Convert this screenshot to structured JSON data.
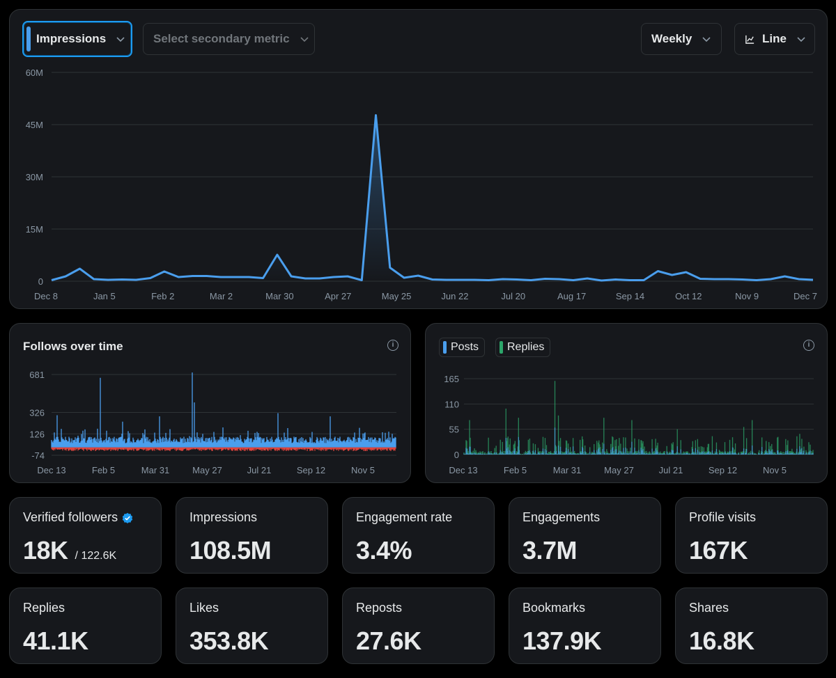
{
  "controls": {
    "primary_metric": "Impressions",
    "secondary_metric_placeholder": "Select secondary metric",
    "interval": "Weekly",
    "chart_type": "Line"
  },
  "chart_data": [
    {
      "type": "line",
      "name": "impressions",
      "title": "",
      "ylim": [
        0,
        60000000
      ],
      "y_ticks": [
        "0",
        "15M",
        "30M",
        "45M",
        "60M"
      ],
      "x_ticks": [
        "Dec 8",
        "Jan 5",
        "Feb 2",
        "Mar 2",
        "Mar 30",
        "Apr 27",
        "May 25",
        "Jun 22",
        "Jul 20",
        "Aug 17",
        "Sep 14",
        "Oct 12",
        "Nov 9",
        "Dec 7"
      ],
      "series": [
        {
          "values": [
            0.3,
            1.4,
            3.6,
            0.6,
            0.4,
            0.5,
            0.4,
            0.9,
            2.8,
            1.2,
            1.5,
            1.5,
            1.2,
            1.2,
            1.2,
            0.9,
            7.6,
            1.4,
            0.8,
            0.8,
            1.2,
            1.4,
            0.3,
            47.7,
            3.9,
            1.0,
            1.6,
            0.5,
            0.4,
            0.4,
            0.4,
            0.3,
            0.6,
            0.5,
            0.3,
            0.7,
            0.6,
            0.3,
            0.8,
            0.2,
            0.5,
            0.3,
            0.3,
            2.9,
            1.8,
            2.6,
            0.7,
            0.6,
            0.6,
            0.5,
            0.3,
            0.6,
            1.4,
            0.6,
            0.4
          ]
        }
      ],
      "unit": "M"
    },
    {
      "type": "bar",
      "name": "follows",
      "title": "Follows over time",
      "ylim": [
        -74,
        681
      ],
      "y_ticks": [
        "-74",
        "126",
        "326",
        "681"
      ],
      "x_ticks": [
        "Dec 13",
        "Feb 5",
        "Mar 31",
        "May 27",
        "Jul 21",
        "Sep 12",
        "Nov 5"
      ],
      "spikes": [
        [
          8,
          300
        ],
        [
          70,
          650
        ],
        [
          102,
          240
        ],
        [
          155,
          290
        ],
        [
          202,
          700
        ],
        [
          205,
          420
        ],
        [
          325,
          320
        ],
        [
          400,
          290
        ]
      ],
      "colors": {
        "positive": "#4a9eed",
        "negative": "#e0443e"
      }
    },
    {
      "type": "bar",
      "name": "posts-replies",
      "title": "",
      "ylim": [
        0,
        165
      ],
      "y_ticks": [
        "0",
        "55",
        "110",
        "165"
      ],
      "x_ticks": [
        "Dec 13",
        "Feb 5",
        "Mar 31",
        "May 27",
        "Jul 21",
        "Sep 12",
        "Nov 5"
      ],
      "series": [
        {
          "name": "Posts",
          "color": "#4a9eed"
        },
        {
          "name": "Replies",
          "color": "#2ca66a"
        }
      ],
      "spikes": [
        [
          8,
          75
        ],
        [
          60,
          100
        ],
        [
          78,
          80
        ],
        [
          130,
          160
        ],
        [
          135,
          85
        ],
        [
          200,
          80
        ],
        [
          240,
          75
        ],
        [
          305,
          55
        ],
        [
          355,
          40
        ],
        [
          400,
          60
        ],
        [
          412,
          75
        ],
        [
          480,
          45
        ]
      ]
    }
  ],
  "follows_panel": {
    "title": "Follows over time"
  },
  "stats": [
    {
      "label": "Verified followers",
      "value": "18K",
      "sub": "/ 122.6K",
      "verified": true
    },
    {
      "label": "Impressions",
      "value": "108.5M"
    },
    {
      "label": "Engagement rate",
      "value": "3.4%"
    },
    {
      "label": "Engagements",
      "value": "3.7M"
    },
    {
      "label": "Profile visits",
      "value": "167K"
    },
    {
      "label": "Replies",
      "value": "41.1K"
    },
    {
      "label": "Likes",
      "value": "353.8K"
    },
    {
      "label": "Reposts",
      "value": "27.6K"
    },
    {
      "label": "Bookmarks",
      "value": "137.9K"
    },
    {
      "label": "Shares",
      "value": "16.8K"
    }
  ],
  "colors": {
    "accent": "#4a9eed",
    "green": "#2ca66a",
    "red": "#e0443e"
  }
}
